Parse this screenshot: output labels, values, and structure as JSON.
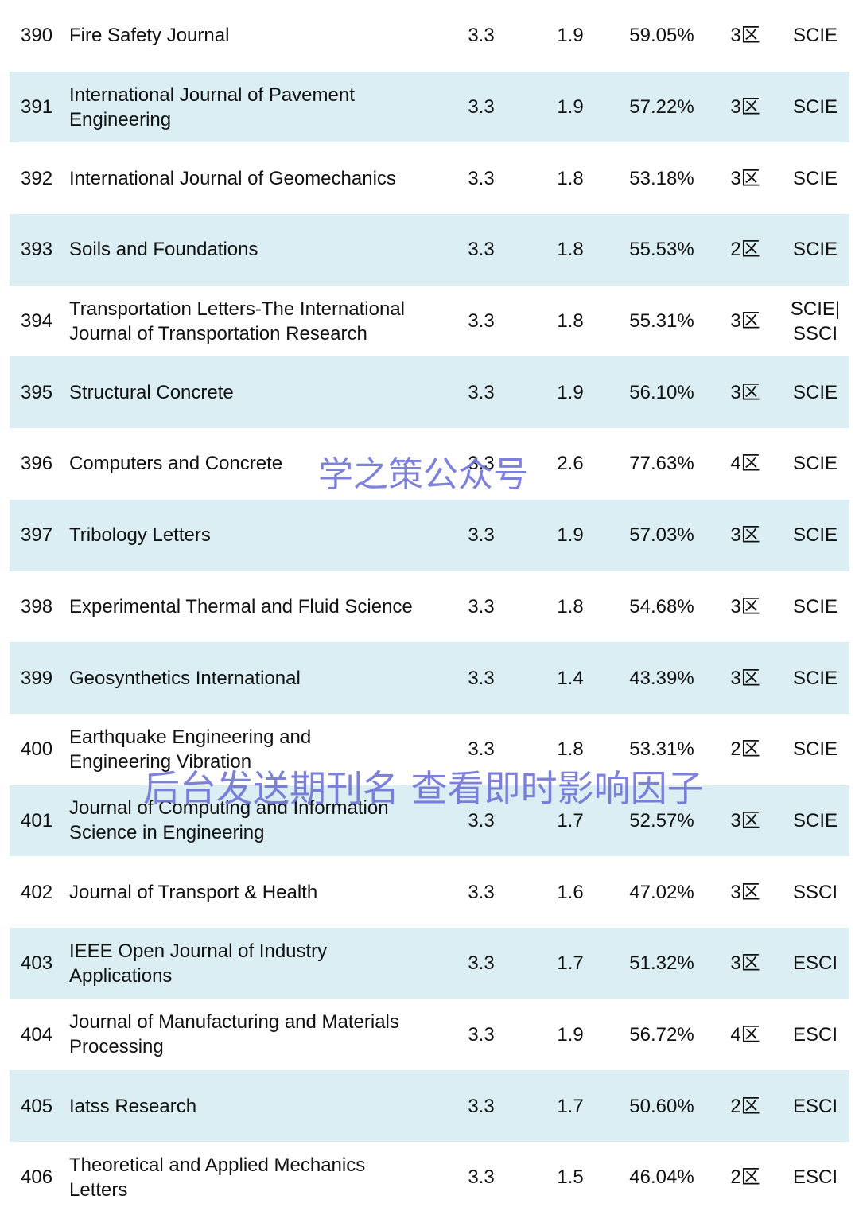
{
  "table": {
    "rows": [
      {
        "rank": "390",
        "name": [
          "Fire Safety Journal"
        ],
        "c3": "3.3",
        "c4": "1.9",
        "c5": "59.05%",
        "zone": "3区",
        "index": "SCIE"
      },
      {
        "rank": "391",
        "name": [
          "International Journal of Pavement",
          "Engineering"
        ],
        "c3": "3.3",
        "c4": "1.9",
        "c5": "57.22%",
        "zone": "3区",
        "index": "SCIE"
      },
      {
        "rank": "392",
        "name": [
          "International Journal of Geomechanics"
        ],
        "c3": "3.3",
        "c4": "1.8",
        "c5": "53.18%",
        "zone": "3区",
        "index": "SCIE"
      },
      {
        "rank": "393",
        "name": [
          "Soils and Foundations"
        ],
        "c3": "3.3",
        "c4": "1.8",
        "c5": "55.53%",
        "zone": "2区",
        "index": "SCIE"
      },
      {
        "rank": "394",
        "name": [
          "Transportation Letters-The International",
          "Journal of Transportation Research"
        ],
        "c3": "3.3",
        "c4": "1.8",
        "c5": "55.31%",
        "zone": "3区",
        "index": [
          "SCIE|",
          "SSCI"
        ]
      },
      {
        "rank": "395",
        "name": [
          "Structural Concrete"
        ],
        "c3": "3.3",
        "c4": "1.9",
        "c5": "56.10%",
        "zone": "3区",
        "index": "SCIE"
      },
      {
        "rank": "396",
        "name": [
          "Computers and Concrete"
        ],
        "c3": "3.3",
        "c4": "2.6",
        "c5": "77.63%",
        "zone": "4区",
        "index": "SCIE"
      },
      {
        "rank": "397",
        "name": [
          "Tribology Letters"
        ],
        "c3": "3.3",
        "c4": "1.9",
        "c5": "57.03%",
        "zone": "3区",
        "index": "SCIE"
      },
      {
        "rank": "398",
        "name": [
          "Experimental Thermal and Fluid Science"
        ],
        "c3": "3.3",
        "c4": "1.8",
        "c5": "54.68%",
        "zone": "3区",
        "index": "SCIE"
      },
      {
        "rank": "399",
        "name": [
          "Geosynthetics International"
        ],
        "c3": "3.3",
        "c4": "1.4",
        "c5": "43.39%",
        "zone": "3区",
        "index": "SCIE"
      },
      {
        "rank": "400",
        "name": [
          "Earthquake Engineering and",
          "Engineering Vibration"
        ],
        "c3": "3.3",
        "c4": "1.8",
        "c5": "53.31%",
        "zone": "2区",
        "index": "SCIE"
      },
      {
        "rank": "401",
        "name": [
          "Journal of Computing and Information",
          "Science in Engineering"
        ],
        "c3": "3.3",
        "c4": "1.7",
        "c5": "52.57%",
        "zone": "3区",
        "index": "SCIE"
      },
      {
        "rank": "402",
        "name": [
          "Journal of Transport & Health"
        ],
        "c3": "3.3",
        "c4": "1.6",
        "c5": "47.02%",
        "zone": "3区",
        "index": "SSCI"
      },
      {
        "rank": "403",
        "name": [
          "IEEE Open Journal of Industry",
          "Applications"
        ],
        "c3": "3.3",
        "c4": "1.7",
        "c5": "51.32%",
        "zone": "3区",
        "index": "ESCI"
      },
      {
        "rank": "404",
        "name": [
          "Journal of Manufacturing and Materials",
          "Processing"
        ],
        "c3": "3.3",
        "c4": "1.9",
        "c5": "56.72%",
        "zone": "4区",
        "index": "ESCI"
      },
      {
        "rank": "405",
        "name": [
          "Iatss Research"
        ],
        "c3": "3.3",
        "c4": "1.7",
        "c5": "50.60%",
        "zone": "2区",
        "index": "ESCI"
      },
      {
        "rank": "406",
        "name": [
          "Theoretical and Applied Mechanics",
          "Letters"
        ],
        "c3": "3.3",
        "c4": "1.5",
        "c5": "46.04%",
        "zone": "2区",
        "index": "ESCI"
      }
    ]
  },
  "watermarks": [
    "学之策公众号",
    "后台发送期刊名 查看即时影响因子"
  ]
}
